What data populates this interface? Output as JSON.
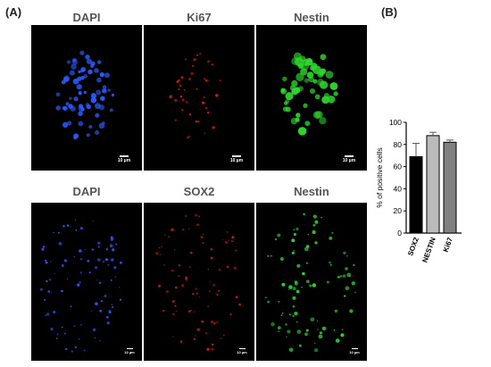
{
  "panels": {
    "a_label": "(A)",
    "b_label": "(B)"
  },
  "row1": {
    "titles": [
      "DAPI",
      "Ki67",
      "Nestin"
    ],
    "scale": "10 µm"
  },
  "row2": {
    "titles": [
      "DAPI",
      "SOX2",
      "Nestin"
    ],
    "scale": "10 µm"
  },
  "colors": {
    "dapi": "#2a5bff",
    "red": "#d41a1a",
    "green": "#2ed62e"
  },
  "chart_data": {
    "type": "bar",
    "categories": [
      "SOX2",
      "NESTIN",
      "Ki67"
    ],
    "values": [
      69,
      88,
      82
    ],
    "errors": [
      12,
      3,
      2
    ],
    "colors": [
      "#000000",
      "#bbbbbb",
      "#808080"
    ],
    "ylabel": "% of positive cells",
    "ylim": [
      0,
      100
    ],
    "yticks": [
      0,
      20,
      40,
      60,
      80,
      100
    ]
  }
}
